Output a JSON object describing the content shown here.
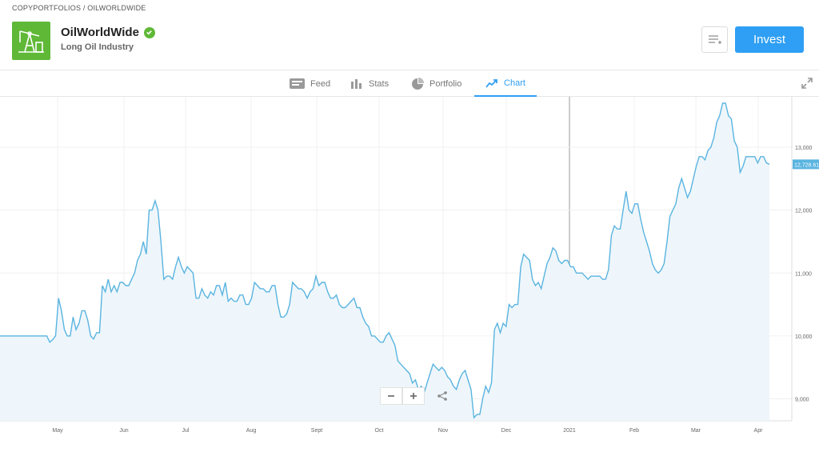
{
  "breadcrumb": {
    "root": "COPYPORTFOLIOS",
    "separator": "/",
    "current": "OILWORLDWIDE"
  },
  "header": {
    "title": "OilWorldWide",
    "subtitle": "Long Oil Industry",
    "invest_label": "Invest"
  },
  "tabs": [
    {
      "label": "Feed",
      "icon": "feed-icon",
      "active": false
    },
    {
      "label": "Stats",
      "icon": "stats-icon",
      "active": false
    },
    {
      "label": "Portfolio",
      "icon": "pie-icon",
      "active": false
    },
    {
      "label": "Chart",
      "icon": "chart-trend-icon",
      "active": true
    }
  ],
  "colors": {
    "accent": "#2e9ff4",
    "line": "#5ab4e0",
    "fill": "#eef6fb",
    "brand": "#5fb836"
  },
  "chart_data": {
    "type": "area",
    "x_ticks": [
      "May",
      "Jun",
      "Jul",
      "Aug",
      "Sept",
      "Oct",
      "Nov",
      "Dec",
      "2021",
      "Feb",
      "Mar",
      "Apr"
    ],
    "y_ticks": [
      "9,000",
      "10,000",
      "11,000",
      "12,000",
      "13,000"
    ],
    "ylim": [
      8650,
      13700
    ],
    "current_value": 12728.61,
    "current_label": "12,728.61",
    "values": [
      10000,
      10000,
      10000,
      10000,
      10000,
      10000,
      10000,
      10000,
      10000,
      10000,
      10000,
      10000,
      10000,
      10000,
      10000,
      10000,
      10000,
      9900,
      9940,
      10000,
      10600,
      10400,
      10100,
      10000,
      10000,
      10300,
      10100,
      10200,
      10400,
      10400,
      10250,
      10000,
      9950,
      10050,
      10050,
      10800,
      10700,
      10900,
      10700,
      10800,
      10700,
      10850,
      10850,
      10800,
      10800,
      10900,
      11000,
      11200,
      11300,
      11500,
      11300,
      12000,
      12000,
      12150,
      12000,
      11500,
      10900,
      10950,
      10950,
      10900,
      11100,
      11250,
      11100,
      11000,
      11100,
      11050,
      11000,
      10600,
      10600,
      10750,
      10650,
      10600,
      10700,
      10650,
      10800,
      10800,
      10650,
      10850,
      10550,
      10600,
      10550,
      10550,
      10650,
      10650,
      10500,
      10500,
      10600,
      10850,
      10800,
      10750,
      10750,
      10700,
      10700,
      10800,
      10800,
      10500,
      10300,
      10300,
      10350,
      10500,
      10850,
      10800,
      10750,
      10750,
      10700,
      10600,
      10700,
      10750,
      10950,
      10800,
      10850,
      10850,
      10700,
      10600,
      10600,
      10650,
      10500,
      10450,
      10450,
      10500,
      10550,
      10600,
      10450,
      10450,
      10300,
      10200,
      10150,
      10000,
      10000,
      9950,
      9900,
      9900,
      10000,
      10050,
      9950,
      9850,
      9600,
      9550,
      9500,
      9450,
      9400,
      9250,
      9300,
      9150,
      9200,
      9100,
      9250,
      9400,
      9550,
      9500,
      9450,
      9500,
      9450,
      9350,
      9300,
      9200,
      9150,
      9300,
      9400,
      9450,
      9300,
      9150,
      8700,
      8750,
      8750,
      9000,
      9200,
      9100,
      9250,
      10100,
      10200,
      10050,
      10200,
      10150,
      10500,
      10450,
      10500,
      10500,
      11100,
      11300,
      11250,
      11200,
      10900,
      10800,
      10850,
      10750,
      10950,
      11150,
      11250,
      11400,
      11350,
      11200,
      11150,
      11200,
      11200,
      11100,
      11100,
      11000,
      11000,
      11000,
      10950,
      10900,
      10950,
      10950,
      10950,
      10950,
      10900,
      10900,
      11050,
      11600,
      11750,
      11700,
      11700,
      12000,
      12300,
      12000,
      11950,
      12100,
      12100,
      11850,
      11650,
      11500,
      11350,
      11150,
      11050,
      11000,
      11050,
      11150,
      11500,
      11900,
      12000,
      12100,
      12350,
      12500,
      12350,
      12200,
      12300,
      12500,
      12700,
      12850,
      12850,
      12800,
      12950,
      13000,
      13150,
      13400,
      13500,
      13700,
      13700,
      13500,
      13450,
      13100,
      13000,
      12600,
      12700,
      12850,
      12850,
      12850,
      12850,
      12750,
      12850,
      12850,
      12750,
      12729
    ]
  }
}
